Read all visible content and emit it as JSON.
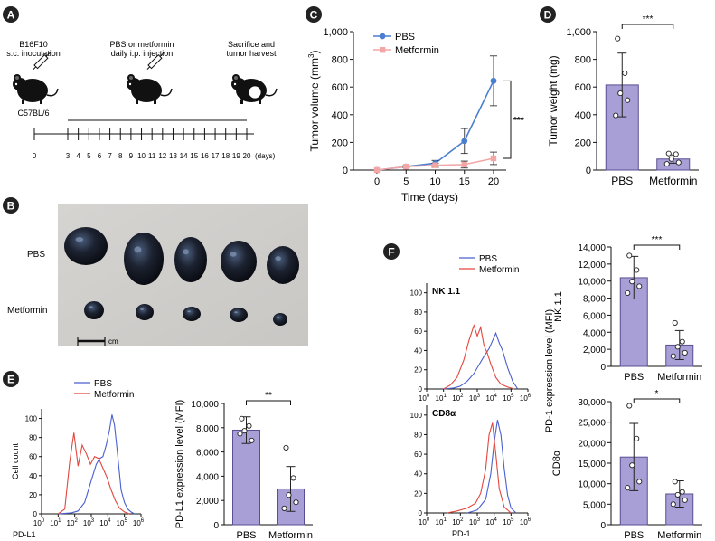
{
  "panels": {
    "A": "A",
    "B": "B",
    "C": "C",
    "D": "D",
    "E": "E",
    "F": "F"
  },
  "panelA": {
    "label1": [
      "B16F10",
      "s.c. inoculation"
    ],
    "label2": [
      "PBS or metformin",
      "daily i.p. injection"
    ],
    "label3": [
      "Sacrifice and",
      "tumor harvest"
    ],
    "strain": "C57BL/6",
    "ticks": [
      "0",
      "3",
      "4",
      "5",
      "6",
      "7",
      "8",
      "9",
      "10",
      "11",
      "12",
      "13",
      "14",
      "15",
      "16",
      "17",
      "18",
      "19",
      "20"
    ],
    "unit": "(days)"
  },
  "panelB": {
    "row1": "PBS",
    "row2": "Metformin",
    "scale": "cm"
  },
  "colors": {
    "bar": "#a89fd6",
    "barStroke": "#5a4f92",
    "pbs": "#4a7fcf",
    "met": "#f2a6a6",
    "histBlue": "#4a5fcf",
    "histRed": "#e2473f"
  },
  "chart_data": [
    {
      "id": "C",
      "type": "line",
      "title": "",
      "xlabel": "Time (days)",
      "ylabel": "Tumor volume (mm3)",
      "x": [
        0,
        5,
        10,
        15,
        20
      ],
      "xticks": [
        "0",
        "5",
        "10",
        "15",
        "20"
      ],
      "ylim": [
        0,
        1000
      ],
      "yticks": [
        "0",
        "200",
        "400",
        "600",
        "800",
        "1,000"
      ],
      "series": [
        {
          "name": "PBS",
          "values": [
            0,
            25,
            50,
            210,
            645
          ],
          "err": [
            0,
            6,
            20,
            90,
            180
          ]
        },
        {
          "name": "Metformin",
          "values": [
            0,
            25,
            35,
            40,
            85
          ],
          "err": [
            0,
            6,
            15,
            25,
            45
          ]
        }
      ],
      "sig": "***"
    },
    {
      "id": "D",
      "type": "bar",
      "ylabel": "Tumor weight (mg)",
      "categories": [
        "PBS",
        "Metformin"
      ],
      "values": [
        615,
        80
      ],
      "err": [
        230,
        30
      ],
      "points": [
        [
          950,
          700,
          555,
          505,
          395
        ],
        [
          120,
          115,
          80,
          55,
          45
        ]
      ],
      "ylim": [
        0,
        1000
      ],
      "yticks": [
        "0",
        "200",
        "400",
        "600",
        "800",
        "1,000"
      ],
      "sig": "***"
    },
    {
      "id": "E-bar",
      "type": "bar",
      "ylabel": "PD-L1 expression level (MFI)",
      "categories": [
        "PBS",
        "Metformin"
      ],
      "values": [
        7800,
        2950
      ],
      "err": [
        1100,
        1850
      ],
      "points": [
        [
          8750,
          8150,
          7750,
          6950,
          7500
        ],
        [
          6350,
          3850,
          2450,
          1850,
          1350
        ]
      ],
      "ylim": [
        0,
        10000
      ],
      "yticks": [
        "0",
        "2,000",
        "4,000",
        "6,000",
        "8,000",
        "10,000"
      ],
      "sig": "**"
    },
    {
      "id": "F-nk",
      "type": "bar",
      "ylabel": "NK 1.1",
      "categories": [
        "PBS",
        "Metformin"
      ],
      "values": [
        10400,
        2500
      ],
      "err": [
        2500,
        1700
      ],
      "points": [
        [
          13000,
          11300,
          9950,
          9400,
          8600
        ],
        [
          5100,
          2900,
          2300,
          1600,
          1200
        ]
      ],
      "ylim": [
        0,
        14000
      ],
      "yticks": [
        "0",
        "2,000",
        "4,000",
        "6,000",
        "8,000",
        "10,000",
        "12,000",
        "14,000"
      ],
      "sig": "***"
    },
    {
      "id": "F-cd8",
      "type": "bar",
      "ylabel": "CD8α",
      "categories": [
        "PBS",
        "Metformin"
      ],
      "values": [
        16500,
        7500
      ],
      "err": [
        8200,
        3200
      ],
      "points": [
        [
          29000,
          21000,
          14500,
          10500,
          9000
        ],
        [
          10500,
          8000,
          7300,
          6000,
          5000
        ]
      ],
      "ylim": [
        0,
        30000
      ],
      "yticks": [
        "0",
        "5,000",
        "10,000",
        "15,000",
        "20,000",
        "25,000",
        "30,000"
      ],
      "sig": "*"
    },
    {
      "id": "E-hist",
      "type": "area",
      "xlabel": "PD-L1",
      "ylabel": "Cell count",
      "title": "",
      "yticks": [
        "0",
        "20",
        "40",
        "60",
        "80",
        "100"
      ],
      "xticks": [
        "10",
        "10",
        "10",
        "10",
        "10",
        "10",
        "10"
      ],
      "xexp": [
        "0",
        "1",
        "2",
        "3",
        "4",
        "5",
        "6"
      ],
      "legend": [
        "PBS",
        "Metformin"
      ],
      "series": [
        {
          "name": "PBS",
          "x": [
            1.0,
            1.8,
            2.2,
            2.6,
            3.0,
            3.3,
            3.5,
            3.7,
            3.9,
            4.1,
            4.25,
            4.4,
            4.6,
            4.8,
            5.0,
            5.2,
            5.4,
            5.6
          ],
          "values": [
            0,
            1,
            3,
            12,
            35,
            52,
            58,
            60,
            72,
            88,
            104,
            93,
            60,
            25,
            12,
            5,
            2,
            0
          ]
        },
        {
          "name": "Metformin",
          "x": [
            1.0,
            1.4,
            1.7,
            1.95,
            2.2,
            2.45,
            2.7,
            2.95,
            3.2,
            3.45,
            3.7,
            3.95,
            4.2,
            4.45,
            4.7,
            5.0,
            5.3
          ],
          "values": [
            0,
            5,
            55,
            85,
            50,
            72,
            63,
            52,
            60,
            58,
            48,
            38,
            25,
            14,
            6,
            2,
            0
          ]
        }
      ]
    },
    {
      "id": "F-hist-nk",
      "type": "area",
      "title": "NK 1.1",
      "yticks": [
        "0",
        "20",
        "40",
        "60",
        "80",
        "100"
      ],
      "xticks": [
        "10",
        "10",
        "10",
        "10",
        "10",
        "10",
        "10"
      ],
      "xexp": [
        "0",
        "1",
        "2",
        "3",
        "4",
        "5",
        "6"
      ],
      "legend": [
        "PBS",
        "Metformin"
      ],
      "series": [
        {
          "name": "PBS",
          "x": [
            1.0,
            1.6,
            2.0,
            2.4,
            2.8,
            3.1,
            3.4,
            3.7,
            3.9,
            4.1,
            4.3,
            4.5,
            4.8,
            5.1,
            5.4
          ],
          "values": [
            0,
            1,
            3,
            8,
            16,
            25,
            34,
            42,
            50,
            58,
            48,
            40,
            22,
            8,
            0
          ]
        },
        {
          "name": "Metformin",
          "x": [
            1.0,
            1.4,
            1.8,
            2.2,
            2.5,
            2.8,
            3.0,
            3.2,
            3.4,
            3.6,
            3.8,
            4.1,
            4.4,
            4.8,
            5.2
          ],
          "values": [
            0,
            4,
            12,
            30,
            50,
            66,
            55,
            64,
            45,
            37,
            26,
            12,
            5,
            2,
            0
          ]
        }
      ]
    },
    {
      "id": "F-hist-cd8",
      "type": "area",
      "title": "CD8α",
      "xlabel": "PD-1",
      "yticks": [
        "0",
        "20",
        "40",
        "60",
        "80",
        "100"
      ],
      "xticks": [
        "10",
        "10",
        "10",
        "10",
        "10",
        "10",
        "10"
      ],
      "xexp": [
        "0",
        "1",
        "2",
        "3",
        "4",
        "5",
        "6"
      ],
      "series": [
        {
          "name": "PBS",
          "x": [
            2.4,
            3.0,
            3.5,
            3.8,
            4.0,
            4.2,
            4.4,
            4.6,
            4.8,
            5.0,
            5.3
          ],
          "values": [
            0,
            3,
            14,
            40,
            72,
            95,
            80,
            45,
            18,
            5,
            0
          ]
        },
        {
          "name": "Metformin",
          "x": [
            1.2,
            1.8,
            2.4,
            2.9,
            3.2,
            3.5,
            3.7,
            3.9,
            4.1,
            4.3,
            4.6,
            5.0
          ],
          "values": [
            0,
            2,
            5,
            10,
            20,
            45,
            80,
            92,
            60,
            25,
            6,
            0
          ]
        }
      ]
    }
  ]
}
